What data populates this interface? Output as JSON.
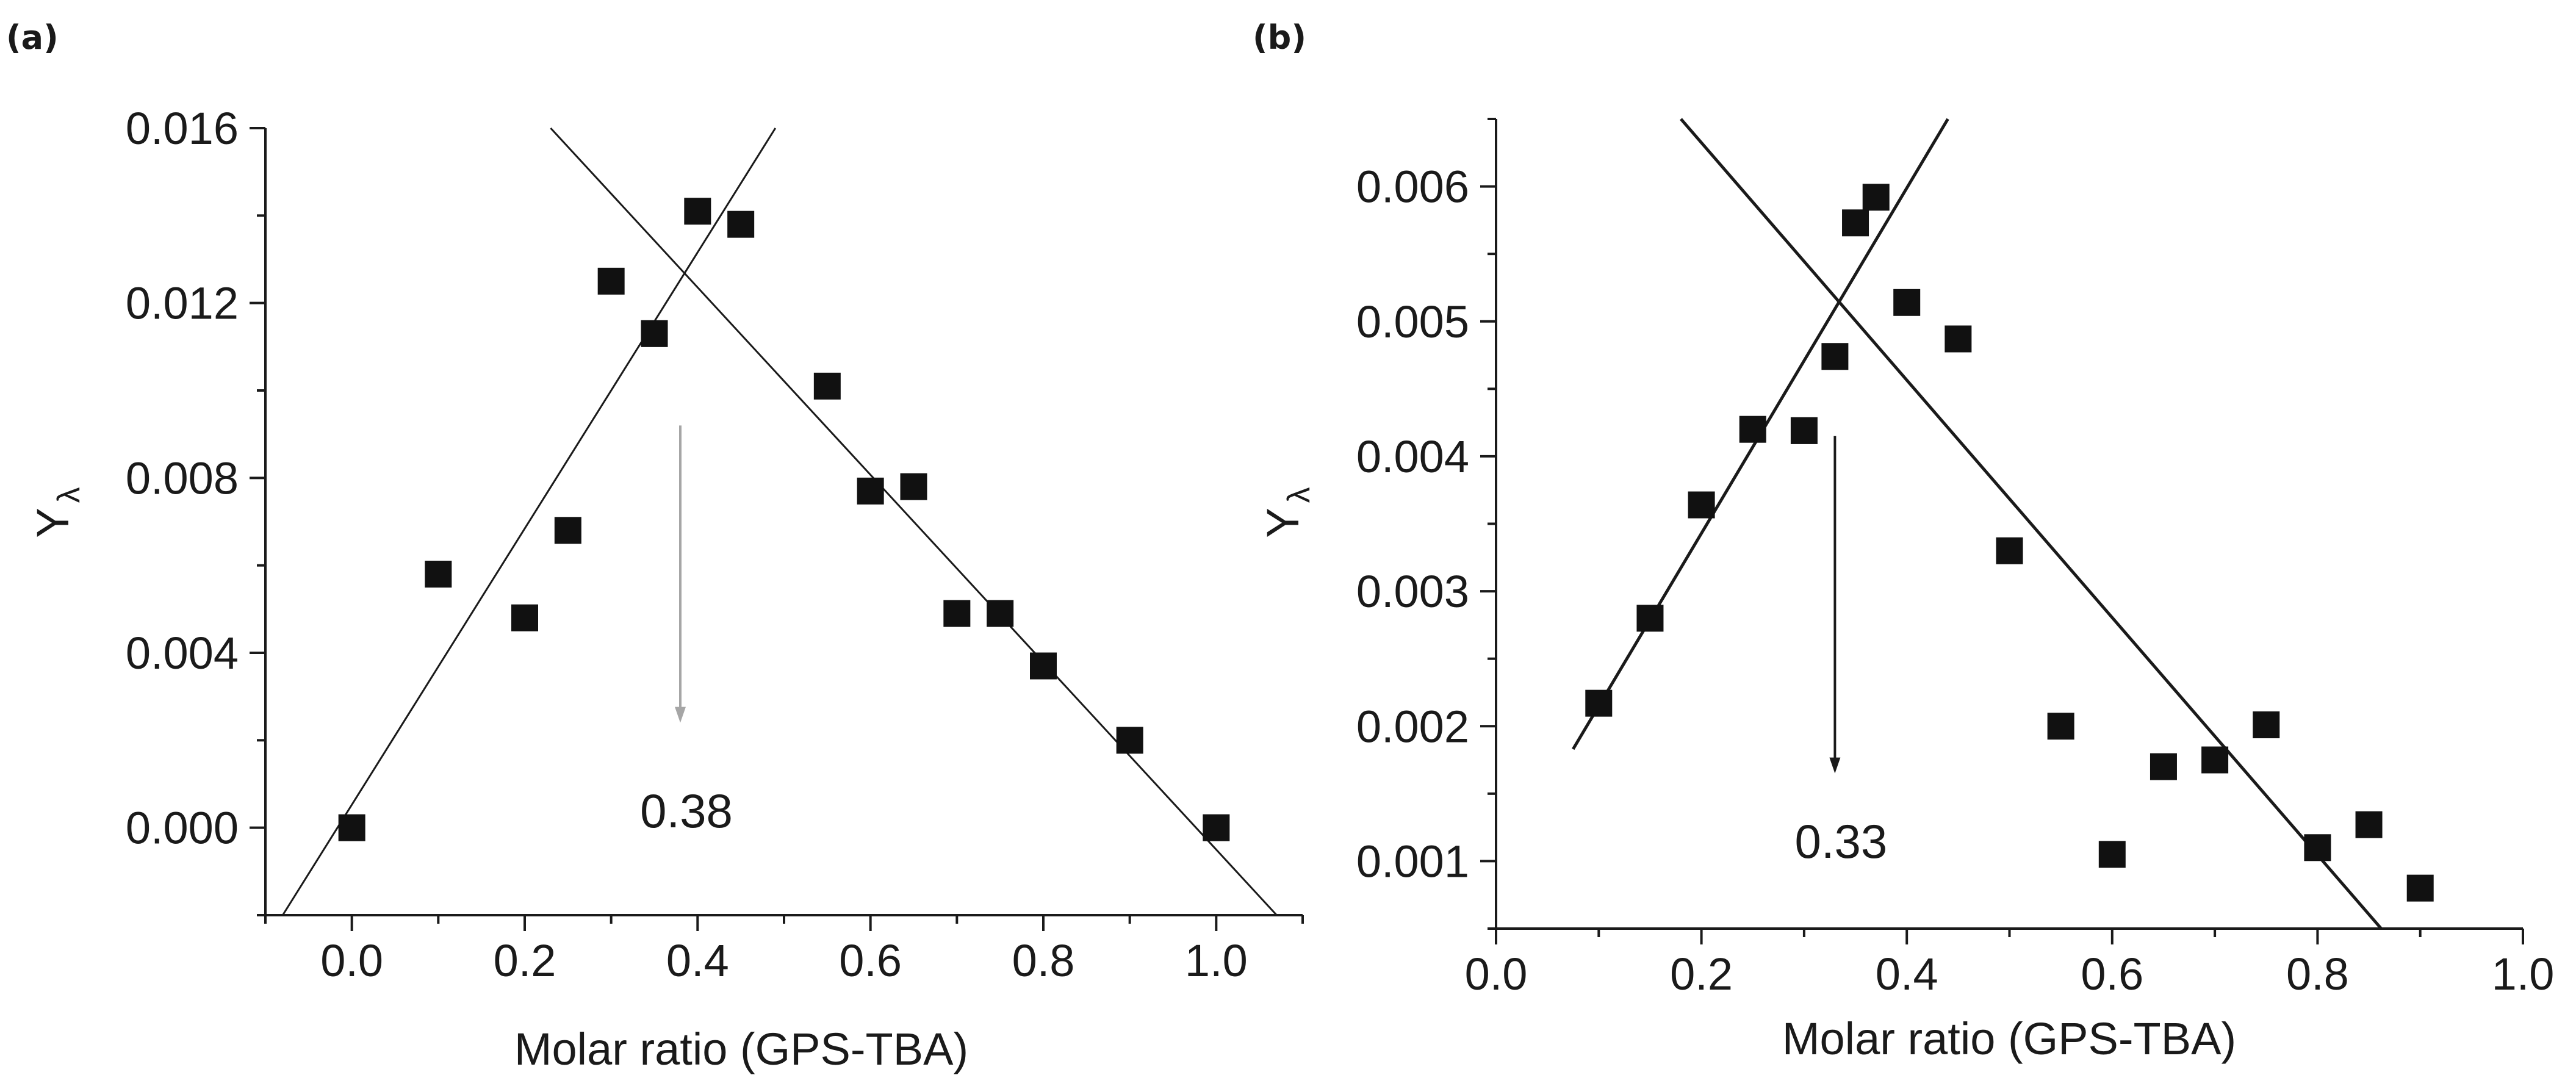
{
  "chart_data": [
    {
      "type": "scatter",
      "panel_label": "(a)",
      "xlabel": "Molar ratio (GPS-TBA)",
      "ylabel": "Y",
      "ylabel_subscript": "λ",
      "xlim": [
        -0.1,
        1.1
      ],
      "ylim": [
        -0.002,
        0.016
      ],
      "xticks": [
        0.0,
        0.2,
        0.4,
        0.6,
        0.8,
        1.0
      ],
      "xtick_labels": [
        "0.0",
        "0.2",
        "0.4",
        "0.6",
        "0.8",
        "1.0"
      ],
      "yticks": [
        0.0,
        0.004,
        0.008,
        0.012,
        0.016
      ],
      "ytick_labels": [
        "0.000",
        "0.004",
        "0.008",
        "0.012",
        "0.016"
      ],
      "points": {
        "x": [
          0.0,
          0.1,
          0.2,
          0.25,
          0.3,
          0.35,
          0.4,
          0.45,
          0.55,
          0.6,
          0.65,
          0.7,
          0.75,
          0.8,
          0.9,
          1.0
        ],
        "y": [
          0.0,
          0.0058,
          0.0048,
          0.0068,
          0.0125,
          0.0113,
          0.0141,
          0.0138,
          0.0101,
          0.0077,
          0.0078,
          0.0049,
          0.0049,
          0.0037,
          0.002,
          0.0
        ]
      },
      "fit_lines": [
        {
          "name": "rising fit",
          "x": [
            -0.08,
            0.49
          ],
          "y": [
            -0.002,
            0.016
          ]
        },
        {
          "name": "falling fit",
          "x": [
            0.23,
            1.07
          ],
          "y": [
            0.016,
            -0.002
          ]
        }
      ],
      "annotation": {
        "text": "0.38",
        "x": 0.38,
        "arrow_from": 0.0092,
        "arrow_to": 0.0024,
        "label_y": 0.0004,
        "color": "#a6a6a6"
      }
    },
    {
      "type": "scatter",
      "panel_label": "(b)",
      "xlabel": "Molar ratio (GPS-TBA)",
      "ylabel": "Y",
      "ylabel_subscript": "λ",
      "xlim": [
        0.0,
        1.0
      ],
      "ylim": [
        0.0005,
        0.0065
      ],
      "xticks": [
        0.0,
        0.2,
        0.4,
        0.6,
        0.8,
        1.0
      ],
      "xtick_labels": [
        "0.0",
        "0.2",
        "0.4",
        "0.6",
        "0.8",
        "1.0"
      ],
      "yticks": [
        0.001,
        0.002,
        0.003,
        0.004,
        0.005,
        0.006
      ],
      "ytick_labels": [
        "0.001",
        "0.002",
        "0.003",
        "0.004",
        "0.005",
        "0.006"
      ],
      "points": {
        "x": [
          0.1,
          0.15,
          0.2,
          0.25,
          0.3,
          0.33,
          0.35,
          0.37,
          0.4,
          0.45,
          0.5,
          0.55,
          0.6,
          0.65,
          0.7,
          0.75,
          0.8,
          0.85,
          0.9
        ],
        "y": [
          0.00217,
          0.0028,
          0.00364,
          0.0042,
          0.00419,
          0.00474,
          0.00573,
          0.00592,
          0.00514,
          0.00487,
          0.0033,
          0.002,
          0.00105,
          0.0017,
          0.00175,
          0.00201,
          0.0011,
          0.00127,
          0.0008
        ]
      },
      "fit_lines": [
        {
          "name": "rising fit",
          "x": [
            0.075,
            0.44
          ],
          "y": [
            0.00183,
            0.0065
          ]
        },
        {
          "name": "falling fit",
          "x": [
            0.18,
            0.862
          ],
          "y": [
            0.0065,
            0.0005
          ]
        }
      ],
      "annotation": {
        "text": "0.33",
        "x": 0.33,
        "arrow_from": 0.00415,
        "arrow_to": 0.00165,
        "label_y": 0.00115,
        "color": "#1a1a1a"
      }
    }
  ]
}
